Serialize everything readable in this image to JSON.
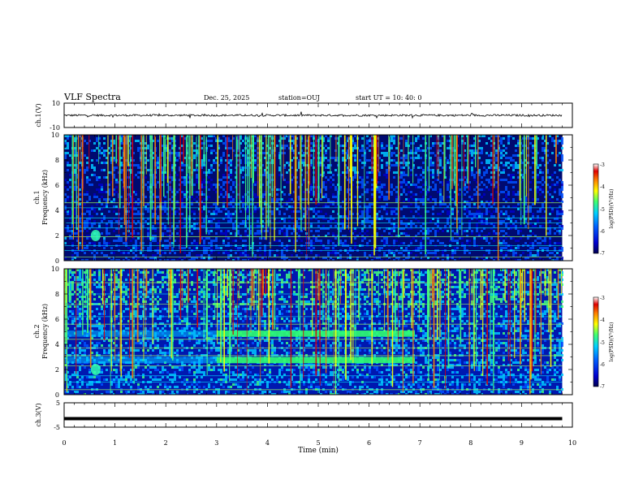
{
  "chart_data": [
    {
      "type": "line",
      "panel": "ch1-waveform",
      "ylabel": "ch.1(V)",
      "ylim": [
        -10,
        10
      ],
      "yticks": [
        "10",
        "-10"
      ],
      "x_range_min": [
        0,
        10
      ],
      "level": 0,
      "description_value": "noisy waveform centered near 0 V, amplitude ~1 V"
    },
    {
      "type": "heatmap",
      "panel": "ch1-spectrogram",
      "ylabel": "ch.1 Frequency (kHz)",
      "ylim": [
        0,
        10
      ],
      "yticks": [
        "0",
        "2",
        "4",
        "6",
        "8",
        "10"
      ],
      "x_range_min": [
        0,
        9.8
      ],
      "colorbar": {
        "label": "log(PSD)(V²/Hz)",
        "range": [
          -7,
          -3
        ],
        "ticks": [
          "-3",
          "-4",
          "-5",
          "-6",
          "-7"
        ]
      }
    },
    {
      "type": "heatmap",
      "panel": "ch2-spectrogram",
      "ylabel": "ch.2 Frequency (kHz)",
      "ylim": [
        0,
        10
      ],
      "yticks": [
        "0",
        "2",
        "4",
        "6",
        "8",
        "10"
      ],
      "x_range_min": [
        0,
        9.8
      ],
      "emission_bands_khz": [
        [
          2.5,
          3.0
        ],
        [
          4.6,
          5.1
        ]
      ],
      "emission_band_time_min": [
        3.0,
        6.9
      ],
      "colorbar": {
        "label": "log(PSD)(V²/Hz)",
        "range": [
          -7,
          -3
        ],
        "ticks": [
          "-3",
          "-4",
          "-5",
          "-6",
          "-7"
        ]
      }
    },
    {
      "type": "line",
      "panel": "ch3-waveform",
      "ylabel": "ch.3(V)",
      "ylim": [
        -5,
        5
      ],
      "yticks": [
        "5",
        "-5"
      ],
      "x_range_min": [
        0,
        9.8
      ],
      "level": -1.5
    }
  ],
  "header": {
    "title": "VLF Spectra",
    "date": "Dec. 25, 2025",
    "station": "station=OUJ",
    "start": "start  UT =   10: 40: 0"
  },
  "xaxis": {
    "label": "Time (min)",
    "ticks": [
      "0",
      "1",
      "2",
      "3",
      "4",
      "5",
      "6",
      "7",
      "8",
      "9",
      "10"
    ],
    "range": [
      0,
      10
    ]
  },
  "labels": {
    "ch1_wave": "ch.1(V)",
    "ch1_freq_a": "ch.1",
    "ch1_freq_b": "Frequency (kHz)",
    "ch2_freq_a": "ch.2",
    "ch2_freq_b": "Frequency (kHz)",
    "ch3_wave": "ch.3(V)",
    "cbar1": "log(PSD)(V²/Hz)",
    "cbar2": "log(PSD)(V²/Hz)"
  },
  "colors": {
    "colormap": [
      "#000040",
      "#0000c8",
      "#0050ff",
      "#00c8ff",
      "#40ff80",
      "#ffff00",
      "#ff8000",
      "#e00000",
      "#ffffff"
    ]
  }
}
